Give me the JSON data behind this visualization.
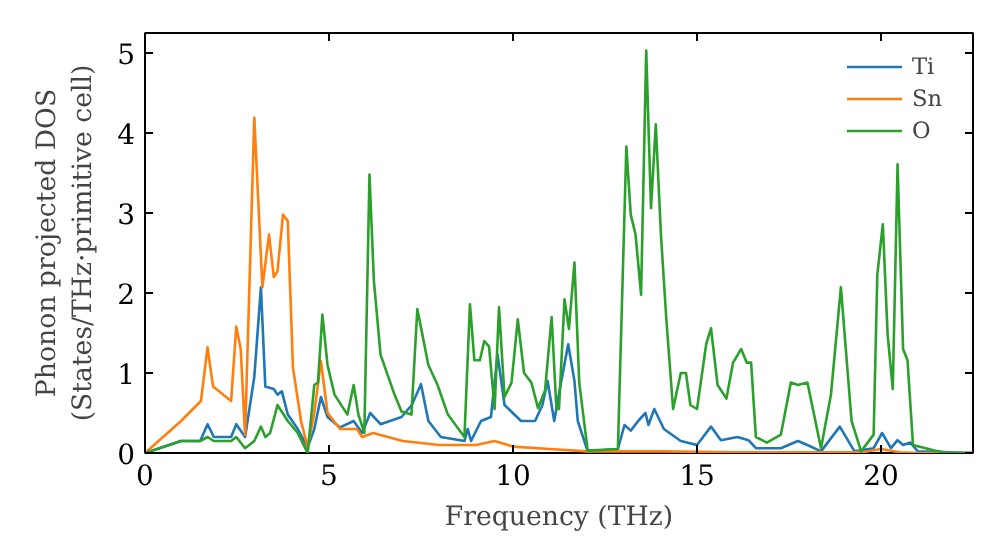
{
  "chart_data": {
    "type": "line",
    "xlabel": "Frequency (THz)",
    "ylabel": "Phonon projected DOS\n(States/THz·primitive cell)",
    "xlim": [
      0,
      22.5
    ],
    "ylim": [
      0,
      5.25
    ],
    "xticks": [
      0,
      5,
      10,
      15,
      20
    ],
    "yticks": [
      0,
      1,
      2,
      3,
      4,
      5
    ],
    "grid": false,
    "legend": "top right",
    "marker": "none",
    "line_style": "solid",
    "series": [
      {
        "name": "Ti",
        "color": "#1f77b4",
        "x": [
          0,
          0.98,
          1.5,
          1.7,
          1.87,
          2.34,
          2.48,
          2.72,
          2.97,
          3.15,
          3.27,
          3.5,
          3.6,
          3.72,
          3.88,
          4.15,
          4.42,
          4.6,
          4.78,
          4.96,
          5.3,
          5.67,
          5.9,
          6.12,
          6.4,
          6.97,
          7.25,
          7.5,
          7.7,
          8.04,
          8.68,
          8.77,
          8.86,
          9.13,
          9.4,
          9.58,
          9.77,
          10.22,
          10.6,
          10.8,
          10.94,
          11.12,
          11.3,
          11.5,
          11.67,
          11.76,
          12.03,
          12.85,
          13.03,
          13.2,
          13.4,
          13.6,
          13.68,
          13.84,
          14.1,
          14.56,
          15.0,
          15.38,
          15.65,
          16.1,
          16.4,
          16.6,
          17.28,
          17.74,
          18.0,
          18.37,
          18.88,
          19.28,
          19.8,
          20.03,
          20.27,
          20.45,
          20.6,
          20.8,
          21.0,
          22.5
        ],
        "values": [
          0,
          0.15,
          0.15,
          0.36,
          0.2,
          0.2,
          0.36,
          0.2,
          0.95,
          2.07,
          0.83,
          0.8,
          0.73,
          0.77,
          0.48,
          0.3,
          0.07,
          0.3,
          0.7,
          0.45,
          0.32,
          0.4,
          0.25,
          0.5,
          0.36,
          0.45,
          0.6,
          0.86,
          0.4,
          0.2,
          0.15,
          0.3,
          0.15,
          0.4,
          0.45,
          1.23,
          0.6,
          0.4,
          0.4,
          0.6,
          0.9,
          0.4,
          0.87,
          1.36,
          0.9,
          0.4,
          0.02,
          0.05,
          0.35,
          0.28,
          0.4,
          0.5,
          0.35,
          0.55,
          0.3,
          0.15,
          0.1,
          0.33,
          0.16,
          0.2,
          0.16,
          0.06,
          0.06,
          0.15,
          0.1,
          0.02,
          0.33,
          0.02,
          0.06,
          0.25,
          0.06,
          0.16,
          0.1,
          0.13,
          0.02,
          0
        ]
      },
      {
        "name": "Sn",
        "color": "#ff7f0e",
        "x": [
          0,
          0.98,
          1.52,
          1.7,
          1.85,
          2.34,
          2.48,
          2.6,
          2.72,
          2.97,
          3.19,
          3.37,
          3.5,
          3.6,
          3.75,
          3.88,
          4.02,
          4.24,
          4.42,
          4.6,
          4.78,
          4.96,
          5.3,
          5.76,
          5.9,
          6.2,
          7.0,
          8.0,
          9.0,
          9.5,
          10.0,
          11.0,
          12.0,
          14.0,
          16.0,
          18.0,
          19.5,
          20.0,
          20.5,
          21.0,
          22.5
        ],
        "values": [
          0,
          0.4,
          0.65,
          1.32,
          0.83,
          0.65,
          1.58,
          1.3,
          0.23,
          4.19,
          2.07,
          2.73,
          2.2,
          2.27,
          2.98,
          2.9,
          1.07,
          0.4,
          0.07,
          0.5,
          1.15,
          0.5,
          0.3,
          0.3,
          0.2,
          0.25,
          0.15,
          0.1,
          0.1,
          0.15,
          0.08,
          0.05,
          0.02,
          0.02,
          0.01,
          0.01,
          0.01,
          0.05,
          0.01,
          0,
          0
        ]
      },
      {
        "name": "O",
        "color": "#2ca02c",
        "x": [
          0,
          0.98,
          1.5,
          1.7,
          1.87,
          2.34,
          2.48,
          2.72,
          2.97,
          3.15,
          3.27,
          3.4,
          3.6,
          3.88,
          4.15,
          4.42,
          4.6,
          4.7,
          4.82,
          4.96,
          5.15,
          5.5,
          5.67,
          5.8,
          5.96,
          6.1,
          6.22,
          6.4,
          6.78,
          6.97,
          7.24,
          7.4,
          7.7,
          7.95,
          8.23,
          8.68,
          8.83,
          8.95,
          9.1,
          9.22,
          9.35,
          9.5,
          9.62,
          9.77,
          9.96,
          10.13,
          10.3,
          10.5,
          10.68,
          10.87,
          11.05,
          11.18,
          11.25,
          11.4,
          11.52,
          11.67,
          11.8,
          12.03,
          12.85,
          13.08,
          13.2,
          13.33,
          13.48,
          13.62,
          13.75,
          13.88,
          14.02,
          14.17,
          14.35,
          14.56,
          14.7,
          14.82,
          15.0,
          15.25,
          15.38,
          15.56,
          15.8,
          15.98,
          16.2,
          16.35,
          16.47,
          16.6,
          16.9,
          17.28,
          17.55,
          17.74,
          18.0,
          18.37,
          18.64,
          18.91,
          19.2,
          19.46,
          19.8,
          19.9,
          20.05,
          20.18,
          20.32,
          20.45,
          20.6,
          20.72,
          20.87,
          21.45,
          21.8,
          22.5
        ],
        "values": [
          0,
          0.15,
          0.15,
          0.2,
          0.15,
          0.15,
          0.2,
          0.06,
          0.15,
          0.33,
          0.2,
          0.25,
          0.6,
          0.4,
          0.25,
          0,
          0.85,
          0.88,
          1.73,
          1.1,
          0.73,
          0.48,
          0.85,
          0.48,
          0.25,
          3.48,
          2.15,
          1.23,
          0.73,
          0.52,
          0.48,
          1.8,
          1.1,
          0.85,
          0.48,
          0.2,
          1.86,
          1.16,
          1.16,
          1.4,
          1.33,
          0.55,
          1.82,
          0.7,
          0.88,
          1.67,
          1.0,
          0.88,
          0.56,
          0.78,
          1.7,
          0.55,
          0.55,
          1.92,
          1.55,
          2.38,
          0.88,
          0.03,
          0.05,
          3.83,
          2.98,
          2.73,
          1.98,
          5.03,
          3.06,
          4.11,
          2.73,
          1.65,
          0.55,
          1.0,
          1.0,
          0.6,
          0.55,
          1.36,
          1.56,
          0.85,
          0.68,
          1.13,
          1.3,
          1.13,
          1.13,
          0.2,
          0.13,
          0.23,
          0.88,
          0.85,
          0.88,
          0.06,
          0.73,
          2.07,
          0.4,
          0.02,
          0.23,
          2.23,
          2.86,
          1.48,
          0.8,
          3.61,
          1.3,
          1.16,
          0.1,
          0.03,
          0,
          0
        ]
      }
    ]
  }
}
